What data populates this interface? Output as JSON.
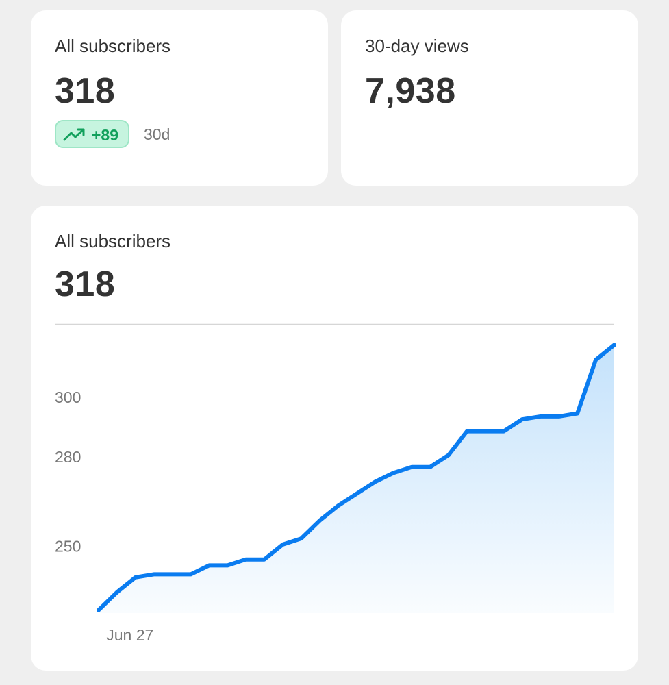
{
  "cards": [
    {
      "title": "All subscribers",
      "value": "318",
      "change": "+89",
      "period": "30d"
    },
    {
      "title": "30-day views",
      "value": "7,938"
    }
  ],
  "chart_panel": {
    "title": "All subscribers",
    "value": "318"
  },
  "chart_data": {
    "type": "line",
    "categories": [
      null,
      null,
      "Jun 27",
      null,
      null,
      null,
      null,
      null,
      null,
      null,
      null,
      null,
      null,
      null,
      null,
      null,
      null,
      null,
      null,
      null,
      null,
      null,
      null,
      null,
      null,
      null,
      null,
      null,
      null
    ],
    "values": [
      229,
      235,
      240,
      241,
      241,
      241,
      244,
      244,
      246,
      246,
      251,
      253,
      259,
      264,
      268,
      272,
      275,
      277,
      277,
      281,
      289,
      289,
      289,
      293,
      294,
      294,
      295,
      313,
      318
    ],
    "color": "#0a7cf0",
    "ylim": [
      228,
      325
    ],
    "yticks": [
      250,
      280,
      300
    ],
    "grid": false
  }
}
